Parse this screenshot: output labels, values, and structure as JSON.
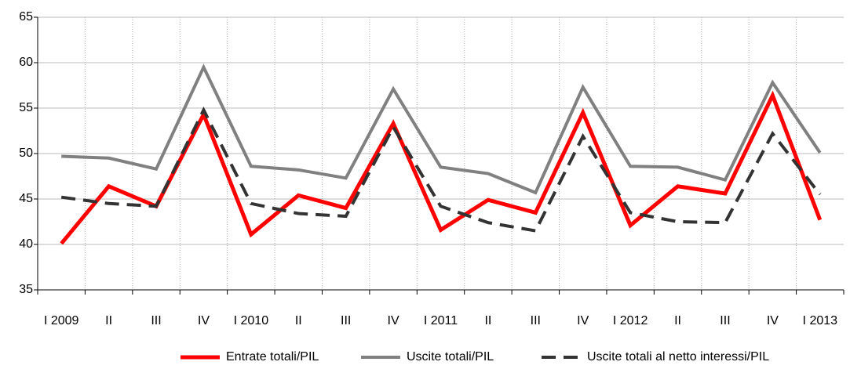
{
  "chart_data": {
    "type": "line",
    "categories": [
      "I 2009",
      "II",
      "III",
      "IV",
      "I 2010",
      "II",
      "III",
      "IV",
      "I 2011",
      "II",
      "III",
      "IV",
      "I 2012",
      "II",
      "III",
      "IV",
      "I 2013"
    ],
    "series": [
      {
        "name": "Entrate totali/PIL",
        "color": "#ff0000",
        "dash": "solid",
        "values": [
          40.1,
          46.4,
          44.2,
          54.3,
          41.1,
          45.4,
          44.0,
          53.3,
          41.6,
          44.9,
          43.5,
          54.5,
          42.1,
          46.4,
          45.6,
          56.4,
          42.7
        ]
      },
      {
        "name": "Uscite totali/PIL",
        "color": "#808080",
        "dash": "solid",
        "values": [
          49.7,
          49.5,
          48.3,
          59.5,
          48.6,
          48.2,
          47.3,
          57.1,
          48.5,
          47.8,
          45.7,
          57.3,
          48.6,
          48.5,
          47.1,
          57.8,
          50.1
        ]
      },
      {
        "name": "Uscite totali al netto interessi/PIL",
        "color": "#333333",
        "dash": "dashed",
        "values": [
          45.2,
          44.5,
          44.2,
          54.8,
          44.5,
          43.4,
          43.1,
          52.9,
          44.2,
          42.4,
          41.5,
          51.9,
          43.5,
          42.5,
          42.4,
          52.2,
          45.5
        ]
      }
    ],
    "ylim": [
      35,
      65
    ],
    "yticks": [
      35,
      40,
      45,
      50,
      55,
      60,
      65
    ],
    "grid": true,
    "legend": "bottom"
  }
}
